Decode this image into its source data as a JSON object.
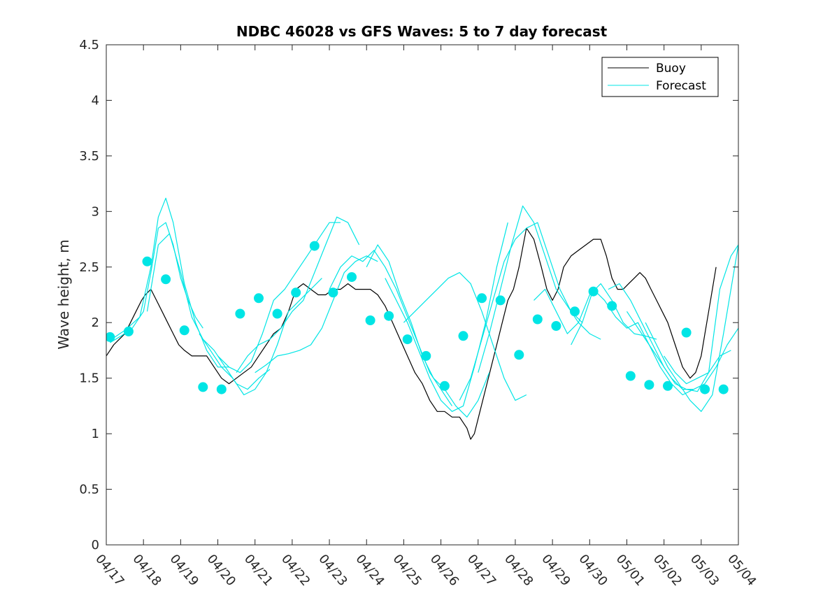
{
  "chart_data": {
    "type": "line",
    "title": "NDBC 46028 vs GFS Waves: 5 to 7 day forecast",
    "xlabel": "",
    "ylabel": "Wave height, m",
    "x_range": [
      0,
      17
    ],
    "ylim": [
      0,
      4.5
    ],
    "y_ticks": [
      "0",
      "0.5",
      "1",
      "1.5",
      "2",
      "2.5",
      "3",
      "3.5",
      "4",
      "4.5"
    ],
    "x_ticks": [
      "04/17",
      "04/18",
      "04/19",
      "04/20",
      "04/21",
      "04/22",
      "04/23",
      "04/24",
      "04/25",
      "04/26",
      "04/27",
      "04/28",
      "04/29",
      "04/30",
      "05/01",
      "05/02",
      "05/03",
      "05/04"
    ],
    "grid": false,
    "legend_position": "top-right",
    "colors": {
      "buoy": "#000000",
      "forecast": "#00e5e5"
    },
    "series": [
      {
        "name": "Buoy",
        "style": "line",
        "x": [
          0.0,
          0.2,
          0.35,
          0.5,
          0.65,
          0.8,
          0.95,
          1.05,
          1.2,
          1.35,
          1.5,
          1.65,
          1.8,
          1.95,
          2.1,
          2.3,
          2.5,
          2.7,
          2.9,
          3.1,
          3.3,
          3.5,
          3.7,
          3.9,
          4.1,
          4.3,
          4.5,
          4.7,
          4.9,
          5.1,
          5.3,
          5.5,
          5.7,
          5.9,
          6.1,
          6.3,
          6.5,
          6.7,
          6.9,
          7.1,
          7.3,
          7.5,
          7.7,
          7.9,
          8.1,
          8.3,
          8.5,
          8.7,
          8.9,
          9.1,
          9.3,
          9.5,
          9.7,
          9.8,
          9.9,
          10.05,
          10.2,
          10.35,
          10.5,
          10.65,
          10.8,
          10.95,
          11.1,
          11.3,
          11.5,
          11.7,
          11.85,
          12.0,
          12.15,
          12.3,
          12.5,
          12.7,
          12.9,
          13.1,
          13.3,
          13.45,
          13.6,
          13.75,
          13.9,
          14.05,
          14.2,
          14.35,
          14.5,
          14.65,
          14.8,
          14.95,
          15.1,
          15.3,
          15.5,
          15.7,
          15.85,
          16.0,
          16.1,
          16.2,
          16.3,
          16.4
        ],
        "y": [
          1.7,
          1.8,
          1.85,
          1.9,
          2.0,
          2.1,
          2.2,
          2.25,
          2.3,
          2.2,
          2.1,
          2.0,
          1.9,
          1.8,
          1.75,
          1.7,
          1.7,
          1.7,
          1.6,
          1.5,
          1.45,
          1.5,
          1.55,
          1.6,
          1.7,
          1.8,
          1.9,
          1.95,
          2.1,
          2.3,
          2.35,
          2.3,
          2.25,
          2.25,
          2.3,
          2.3,
          2.35,
          2.3,
          2.3,
          2.3,
          2.25,
          2.15,
          2.0,
          1.85,
          1.7,
          1.55,
          1.45,
          1.3,
          1.2,
          1.2,
          1.15,
          1.15,
          1.05,
          0.95,
          1.0,
          1.2,
          1.4,
          1.6,
          1.8,
          2.0,
          2.2,
          2.3,
          2.5,
          2.85,
          2.75,
          2.5,
          2.3,
          2.2,
          2.3,
          2.5,
          2.6,
          2.65,
          2.7,
          2.75,
          2.75,
          2.6,
          2.4,
          2.3,
          2.3,
          2.35,
          2.4,
          2.45,
          2.4,
          2.3,
          2.2,
          2.1,
          2.0,
          1.8,
          1.6,
          1.5,
          1.55,
          1.7,
          1.9,
          2.1,
          2.3,
          2.5
        ]
      },
      {
        "name": "Forecast",
        "style": "line",
        "x": [
          0.1,
          0.4,
          0.7,
          1.0,
          1.2,
          1.4,
          1.6,
          1.8,
          2.0,
          2.2,
          2.4,
          2.6
        ],
        "y": [
          1.82,
          1.88,
          1.95,
          2.1,
          2.45,
          2.85,
          2.9,
          2.7,
          2.4,
          2.2,
          2.05,
          1.95
        ]
      },
      {
        "name": "",
        "style": "line",
        "x": [
          0.1,
          0.5,
          0.9,
          1.2,
          1.4,
          1.6,
          1.8,
          2.1,
          2.4,
          2.7,
          3.0,
          3.3
        ],
        "y": [
          1.84,
          1.93,
          2.05,
          2.5,
          2.95,
          3.12,
          2.9,
          2.35,
          2.0,
          1.75,
          1.6,
          1.6
        ]
      },
      {
        "name": "",
        "style": "line",
        "x": [
          1.1,
          1.4,
          1.7,
          2.0,
          2.3,
          2.6,
          2.9,
          3.2,
          3.5,
          3.8,
          4.1,
          4.4
        ],
        "y": [
          2.1,
          2.7,
          2.8,
          2.45,
          2.05,
          1.85,
          1.75,
          1.6,
          1.45,
          1.4,
          1.5,
          1.58
        ]
      },
      {
        "name": "",
        "style": "line",
        "x": [
          2.5,
          2.8,
          3.1,
          3.4,
          3.7,
          4.0,
          4.3,
          4.6,
          4.9,
          5.2,
          5.5,
          5.8
        ],
        "y": [
          1.9,
          1.75,
          1.6,
          1.5,
          1.35,
          1.4,
          1.55,
          1.8,
          2.1,
          2.2,
          2.3,
          2.4
        ]
      },
      {
        "name": "",
        "style": "line",
        "x": [
          3.0,
          3.3,
          3.6,
          3.9,
          4.2,
          4.5,
          4.8,
          5.1,
          5.4,
          5.7,
          6.0,
          6.3
        ],
        "y": [
          1.7,
          1.6,
          1.55,
          1.65,
          1.9,
          2.2,
          2.3,
          2.45,
          2.6,
          2.75,
          2.9,
          2.9
        ]
      },
      {
        "name": "",
        "style": "line",
        "x": [
          3.5,
          3.8,
          4.1,
          4.4,
          4.7,
          5.0,
          5.3,
          5.6,
          5.9,
          6.2,
          6.5,
          6.8
        ],
        "y": [
          1.55,
          1.7,
          1.8,
          1.85,
          1.95,
          2.1,
          2.2,
          2.45,
          2.7,
          2.95,
          2.9,
          2.7
        ]
      },
      {
        "name": "",
        "style": "line",
        "x": [
          4.0,
          4.3,
          4.6,
          4.9,
          5.2,
          5.5,
          5.8,
          6.1,
          6.4,
          6.7,
          7.0,
          7.3
        ],
        "y": [
          1.55,
          1.62,
          1.7,
          1.72,
          1.75,
          1.8,
          1.95,
          2.2,
          2.45,
          2.55,
          2.6,
          2.55
        ]
      },
      {
        "name": "",
        "style": "line",
        "x": [
          6.0,
          6.3,
          6.6,
          6.9,
          7.2,
          7.5,
          7.8,
          8.1,
          8.4,
          8.7,
          9.0,
          9.3
        ],
        "y": [
          2.3,
          2.5,
          2.6,
          2.55,
          2.65,
          2.5,
          2.3,
          2.05,
          1.8,
          1.55,
          1.4,
          1.25
        ]
      },
      {
        "name": "",
        "style": "line",
        "x": [
          7.0,
          7.3,
          7.6,
          7.9,
          8.2,
          8.5,
          8.8,
          9.1,
          9.4,
          9.7,
          10.0,
          10.3
        ],
        "y": [
          2.5,
          2.7,
          2.55,
          2.25,
          2.0,
          1.7,
          1.5,
          1.4,
          1.25,
          1.15,
          1.3,
          1.55
        ]
      },
      {
        "name": "",
        "style": "line",
        "x": [
          7.5,
          7.8,
          8.1,
          8.4,
          8.7,
          9.0,
          9.3,
          9.6,
          9.9,
          10.2,
          10.5,
          10.8
        ],
        "y": [
          2.4,
          2.2,
          2.0,
          1.75,
          1.5,
          1.3,
          1.2,
          1.25,
          1.6,
          2.0,
          2.5,
          2.9
        ]
      },
      {
        "name": "",
        "style": "line",
        "x": [
          8.0,
          8.3,
          8.6,
          8.9,
          9.2,
          9.5,
          9.8,
          10.1,
          10.4,
          10.7,
          11.0,
          11.3
        ],
        "y": [
          2.0,
          2.1,
          2.2,
          2.3,
          2.4,
          2.45,
          2.35,
          2.1,
          1.8,
          1.5,
          1.3,
          1.35
        ]
      },
      {
        "name": "",
        "style": "line",
        "x": [
          9.5,
          9.8,
          10.1,
          10.4,
          10.7,
          11.0,
          11.3,
          11.6,
          11.9,
          12.2,
          12.5,
          12.8
        ],
        "y": [
          1.3,
          1.5,
          1.85,
          2.2,
          2.55,
          2.75,
          2.85,
          2.9,
          2.6,
          2.3,
          2.1,
          2.0
        ]
      },
      {
        "name": "",
        "style": "line",
        "x": [
          10.0,
          10.3,
          10.6,
          10.9,
          11.2,
          11.5,
          11.8,
          12.1,
          12.4,
          12.7,
          13.0,
          13.3
        ],
        "y": [
          1.55,
          1.9,
          2.3,
          2.7,
          3.05,
          2.9,
          2.6,
          2.3,
          2.15,
          2.0,
          1.9,
          1.85
        ]
      },
      {
        "name": "",
        "style": "line",
        "x": [
          11.5,
          11.8,
          12.1,
          12.4,
          12.7,
          13.0,
          13.3,
          13.6,
          13.9,
          14.2,
          14.5,
          14.8
        ],
        "y": [
          2.2,
          2.3,
          2.1,
          1.9,
          2.0,
          2.25,
          2.35,
          2.2,
          2.0,
          1.9,
          1.88,
          1.85
        ]
      },
      {
        "name": "",
        "style": "line",
        "x": [
          12.5,
          12.8,
          13.1,
          13.4,
          13.7,
          14.0,
          14.3,
          14.6,
          14.9,
          15.2,
          15.5,
          15.8
        ],
        "y": [
          1.8,
          2.0,
          2.3,
          2.2,
          2.05,
          1.95,
          2.0,
          1.8,
          1.65,
          1.5,
          1.4,
          1.4
        ]
      },
      {
        "name": "",
        "style": "line",
        "x": [
          13.5,
          13.8,
          14.1,
          14.4,
          14.7,
          15.0,
          15.3,
          15.6,
          15.9,
          16.2,
          16.5,
          16.8
        ],
        "y": [
          2.3,
          2.35,
          2.2,
          2.0,
          1.8,
          1.6,
          1.45,
          1.4,
          1.38,
          1.55,
          1.7,
          1.75
        ]
      },
      {
        "name": "",
        "style": "line",
        "x": [
          14.0,
          14.3,
          14.6,
          14.9,
          15.2,
          15.5,
          15.8,
          16.1,
          16.4,
          16.7,
          17.0
        ],
        "y": [
          2.1,
          1.95,
          1.8,
          1.6,
          1.45,
          1.35,
          1.4,
          1.45,
          1.6,
          1.8,
          1.95
        ]
      },
      {
        "name": "",
        "style": "line",
        "x": [
          14.5,
          14.8,
          15.1,
          15.4,
          15.7,
          16.0,
          16.3,
          16.6,
          16.9,
          17.0
        ],
        "y": [
          2.0,
          1.8,
          1.6,
          1.45,
          1.3,
          1.2,
          1.35,
          1.9,
          2.5,
          2.7
        ]
      },
      {
        "name": "",
        "style": "line",
        "x": [
          15.0,
          15.3,
          15.6,
          15.9,
          16.2,
          16.5,
          16.8,
          17.0
        ],
        "y": [
          1.7,
          1.55,
          1.45,
          1.5,
          1.55,
          2.3,
          2.6,
          2.7
        ]
      },
      {
        "name": "",
        "style": "markers",
        "x": [
          0.1,
          0.6,
          1.1,
          1.6,
          2.1,
          2.6,
          3.1,
          3.6,
          4.1,
          4.6,
          5.1,
          5.6,
          6.1,
          6.6,
          7.1,
          7.6,
          8.1,
          8.6,
          9.1,
          9.6,
          10.1,
          10.6,
          11.1,
          11.6,
          12.1,
          12.6,
          13.1,
          13.6,
          14.1,
          14.6,
          15.1,
          15.6,
          16.1,
          16.6
        ],
        "y": [
          1.87,
          1.92,
          2.55,
          2.39,
          1.93,
          1.42,
          1.4,
          2.08,
          2.22,
          2.08,
          2.27,
          2.69,
          2.27,
          2.41,
          2.02,
          2.06,
          1.85,
          1.7,
          1.43,
          1.88,
          2.22,
          2.2,
          1.71,
          2.03,
          1.97,
          2.1,
          2.28,
          2.15,
          1.52,
          1.44,
          1.43,
          1.91,
          1.4,
          1.4
        ]
      }
    ]
  }
}
